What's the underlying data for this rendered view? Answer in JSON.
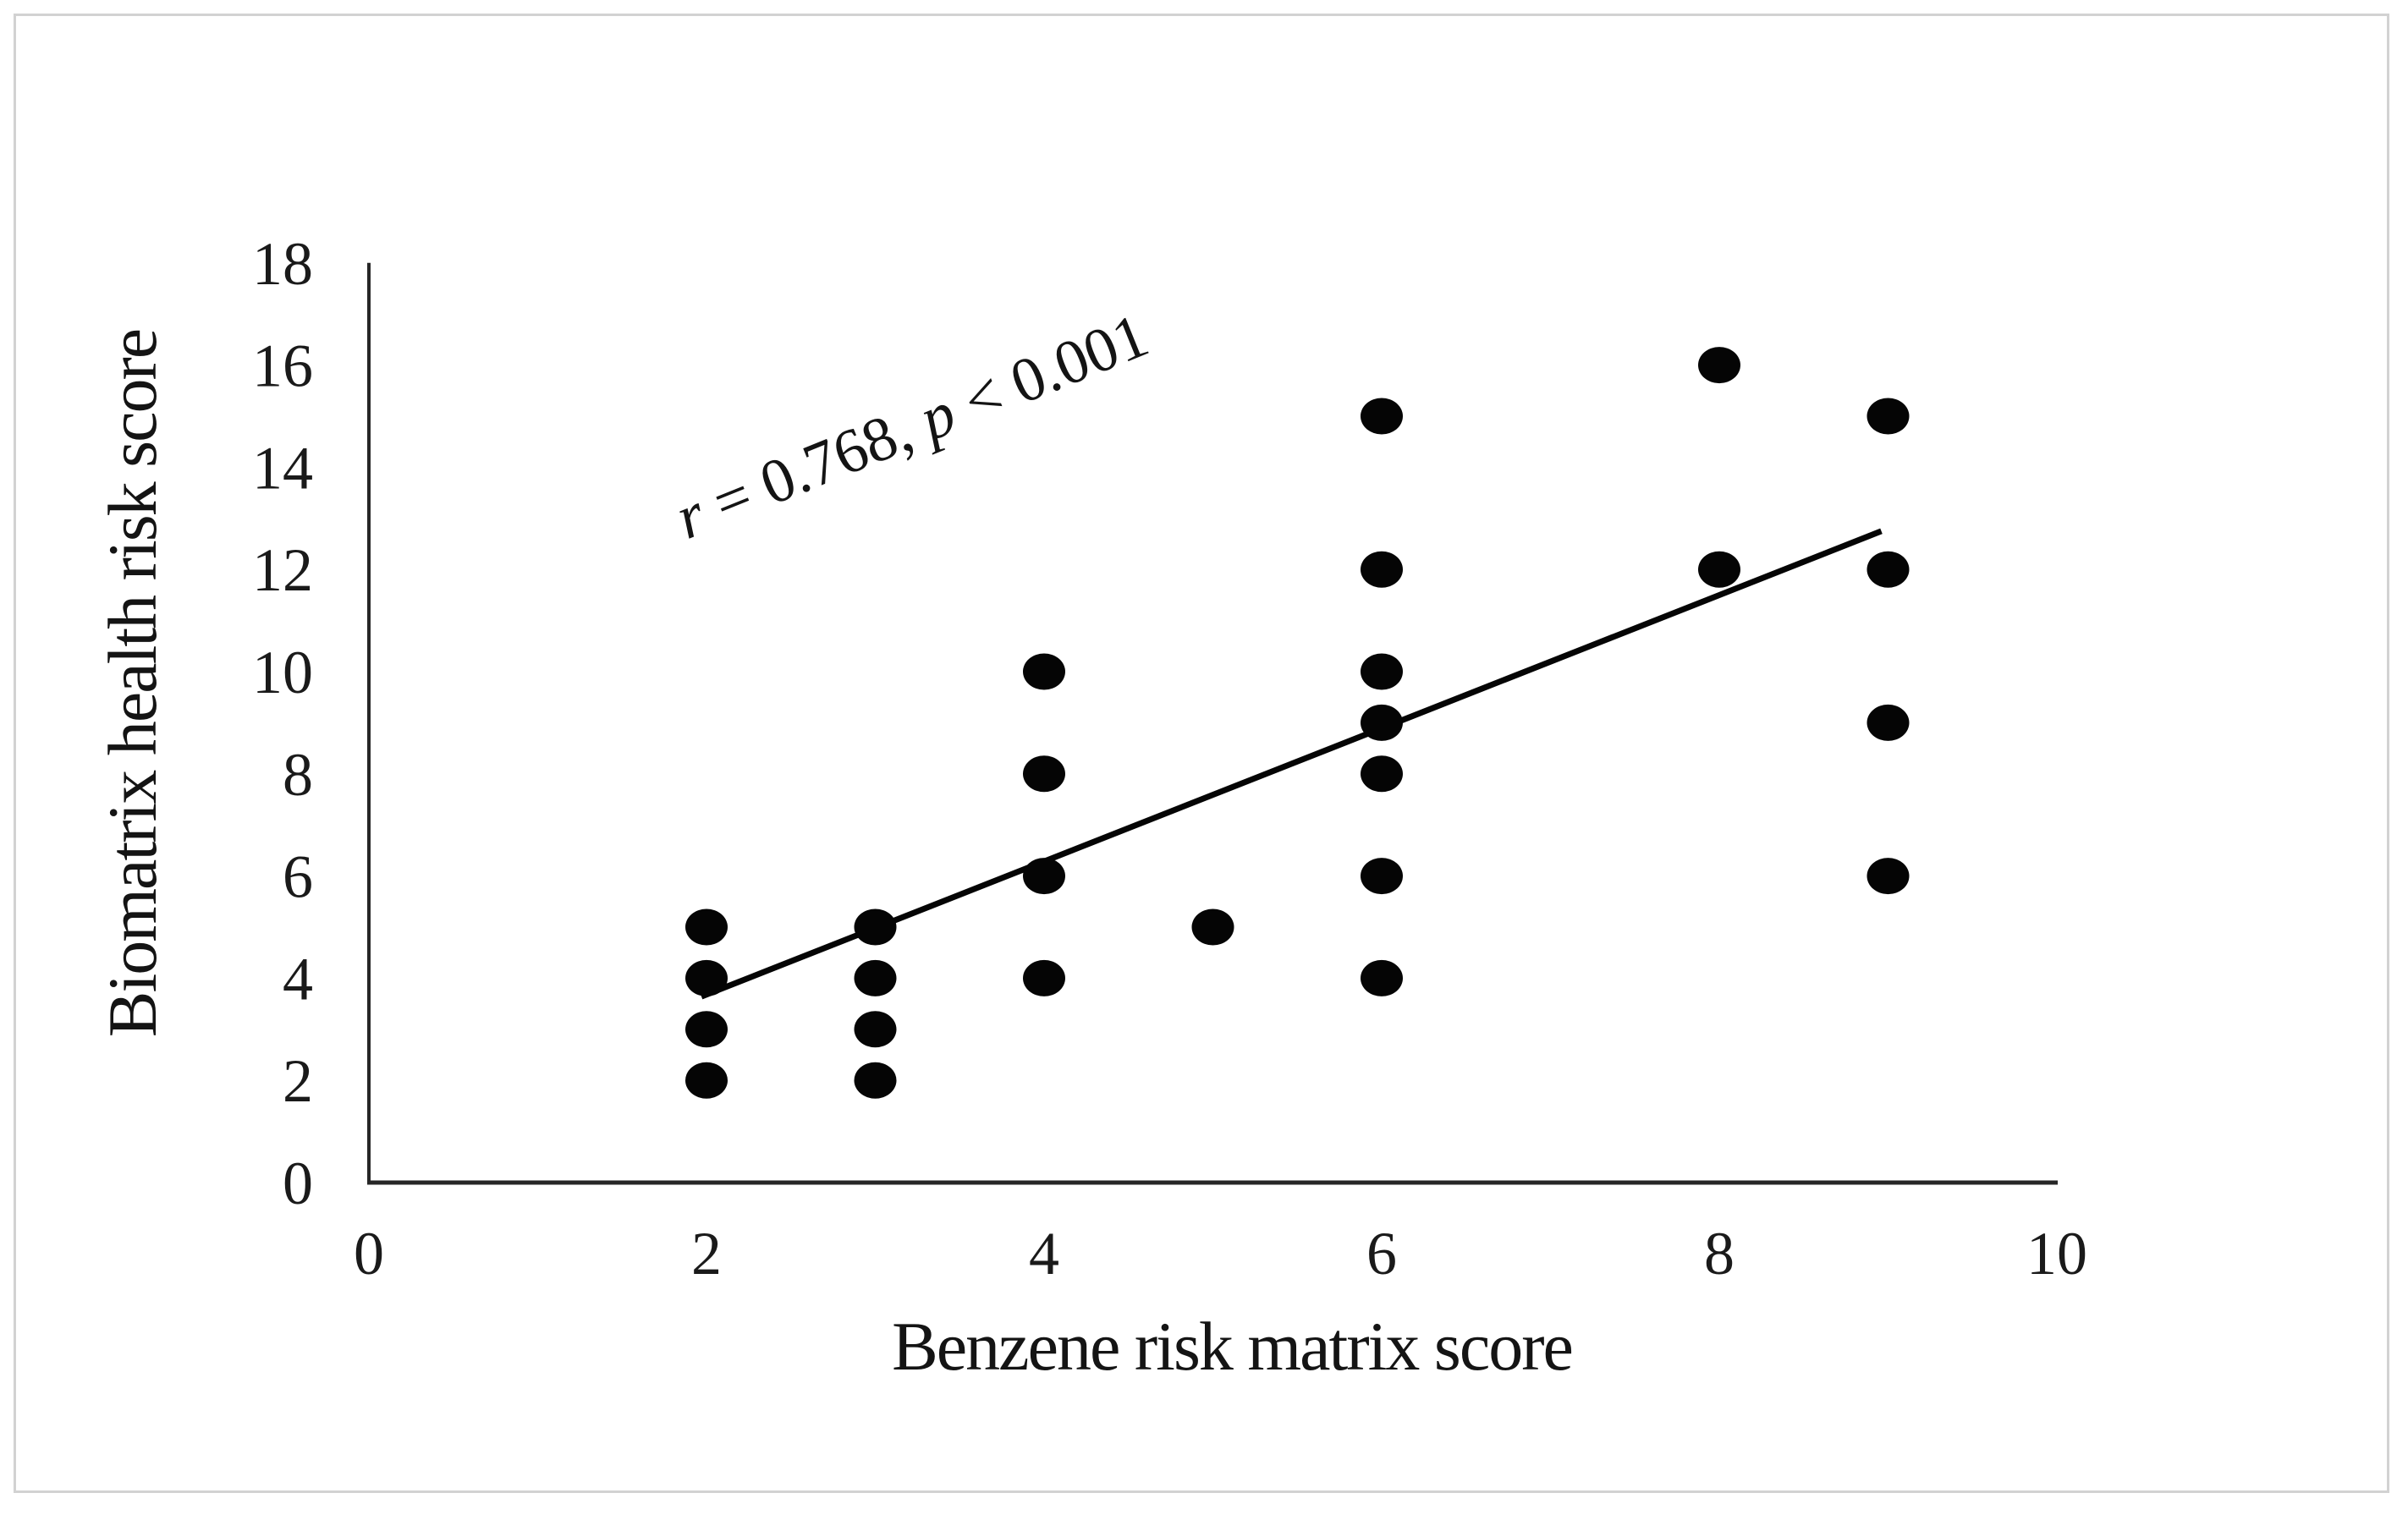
{
  "figure": {
    "background_color": "#ffffff",
    "border_color": "#d2d2d2"
  },
  "chart_data": {
    "type": "scatter",
    "title": "",
    "xlabel": "Benzene risk matrix score",
    "ylabel": "Biomatrix health risk score",
    "xlim": [
      0,
      10
    ],
    "ylim": [
      0,
      18
    ],
    "x_ticks": [
      0,
      2,
      4,
      6,
      8,
      10
    ],
    "y_ticks": [
      0,
      2,
      4,
      6,
      8,
      10,
      12,
      14,
      16,
      18
    ],
    "grid": false,
    "legend": "none",
    "annotation": {
      "text": "r = 0.768, p < 0.001",
      "segments": [
        "r",
        " = 0.768, ",
        "p",
        " < 0.001"
      ],
      "rotation_deg": -22,
      "r_value": 0.768,
      "p_value": "< 0.001"
    },
    "points": [
      [
        2,
        2
      ],
      [
        2,
        3
      ],
      [
        2,
        4
      ],
      [
        2,
        5
      ],
      [
        3,
        2
      ],
      [
        3,
        3
      ],
      [
        3,
        4
      ],
      [
        3,
        5
      ],
      [
        4,
        4
      ],
      [
        4,
        6
      ],
      [
        4,
        8
      ],
      [
        4,
        10
      ],
      [
        5,
        5
      ],
      [
        6,
        4
      ],
      [
        6,
        6
      ],
      [
        6,
        8
      ],
      [
        6,
        9
      ],
      [
        6,
        10
      ],
      [
        6,
        12
      ],
      [
        6,
        15
      ],
      [
        8,
        12
      ],
      [
        8,
        16
      ],
      [
        9,
        6
      ],
      [
        9,
        9
      ],
      [
        9,
        12
      ],
      [
        9,
        15
      ]
    ],
    "trendline": {
      "x1": 1.97,
      "y1": 3.64,
      "x2": 8.96,
      "y2": 12.75
    },
    "colors": {
      "marker": "#050505",
      "line": "#050505",
      "axis": "#262626",
      "text": "#1a1a1a"
    }
  }
}
